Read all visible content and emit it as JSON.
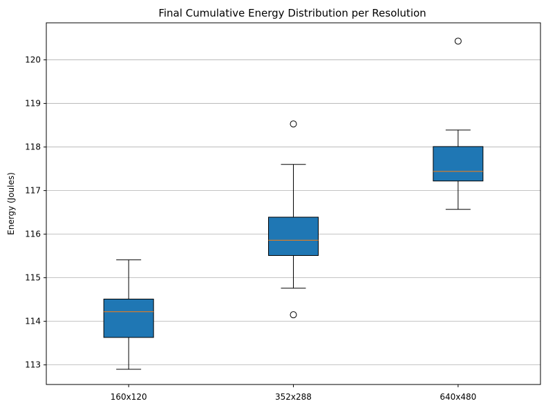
{
  "chart_data": {
    "type": "box",
    "title": "Final Cumulative Energy Distribution per Resolution",
    "xlabel": "",
    "ylabel": "Energy (Joules)",
    "categories": [
      "160x120",
      "352x288",
      "640x480"
    ],
    "ylim": [
      112.55,
      120.85
    ],
    "yticks": [
      113,
      114,
      115,
      116,
      117,
      118,
      119,
      120
    ],
    "grid": "horizontal",
    "box_color": "#1f77b4",
    "median_color": "#ff7f0e",
    "boxes": [
      {
        "category": "160x120",
        "whisker_low": 112.9,
        "q1": 113.63,
        "median": 114.22,
        "q3": 114.51,
        "whisker_high": 115.41,
        "outliers": []
      },
      {
        "category": "352x288",
        "whisker_low": 114.76,
        "q1": 115.51,
        "median": 115.86,
        "q3": 116.39,
        "whisker_high": 117.6,
        "outliers": [
          114.15,
          118.53
        ]
      },
      {
        "category": "640x480",
        "whisker_low": 116.57,
        "q1": 117.22,
        "median": 117.44,
        "q3": 118.01,
        "whisker_high": 118.39,
        "outliers": [
          120.43
        ]
      }
    ]
  }
}
